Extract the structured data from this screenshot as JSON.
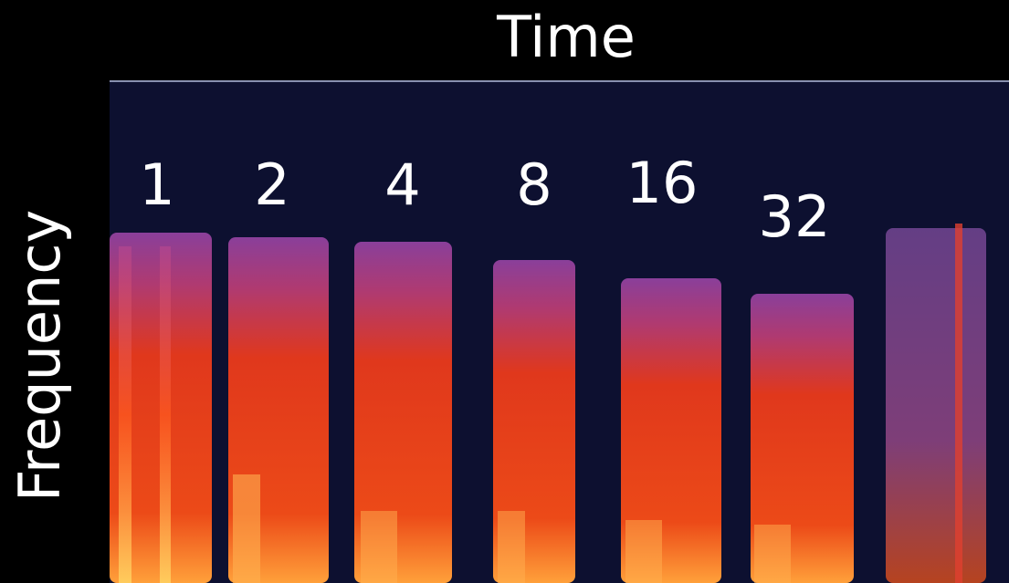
{
  "axes": {
    "x_label": "Time",
    "y_label": "Frequency"
  },
  "annotations": [
    "1",
    "2",
    "4",
    "8",
    "16",
    "32"
  ]
}
